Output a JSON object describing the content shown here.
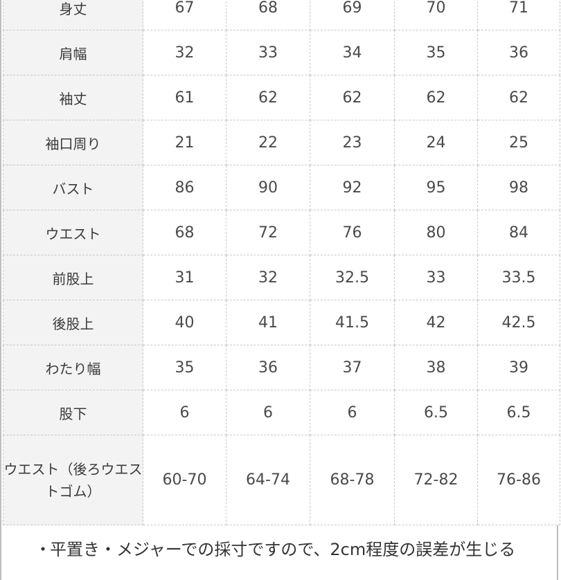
{
  "table": {
    "rows": [
      {
        "label": "身丈",
        "values": [
          "67",
          "68",
          "69",
          "70",
          "71"
        ]
      },
      {
        "label": "肩幅",
        "values": [
          "32",
          "33",
          "34",
          "35",
          "36"
        ]
      },
      {
        "label": "袖丈",
        "values": [
          "61",
          "62",
          "62",
          "62",
          "62"
        ]
      },
      {
        "label": "袖口周り",
        "values": [
          "21",
          "22",
          "23",
          "24",
          "25"
        ]
      },
      {
        "label": "バスト",
        "values": [
          "86",
          "90",
          "92",
          "95",
          "98"
        ]
      },
      {
        "label": "ウエスト",
        "values": [
          "68",
          "72",
          "76",
          "80",
          "84"
        ]
      },
      {
        "label": "前股上",
        "values": [
          "31",
          "32",
          "32.5",
          "33",
          "33.5"
        ]
      },
      {
        "label": "後股上",
        "values": [
          "40",
          "41",
          "41.5",
          "42",
          "42.5"
        ]
      },
      {
        "label": "わたり幅",
        "values": [
          "35",
          "36",
          "37",
          "38",
          "39"
        ]
      },
      {
        "label": "股下",
        "values": [
          "6",
          "6",
          "6",
          "6.5",
          "6.5"
        ]
      },
      {
        "label": "ウエスト（後ろウエストゴム）",
        "values": [
          "60-70",
          "64-74",
          "68-78",
          "72-82",
          "76-86"
        ]
      }
    ]
  },
  "note": {
    "bullet": "・",
    "text": "平置き・メジャーでの採寸ですので、2cm程度の誤差が生じる"
  }
}
